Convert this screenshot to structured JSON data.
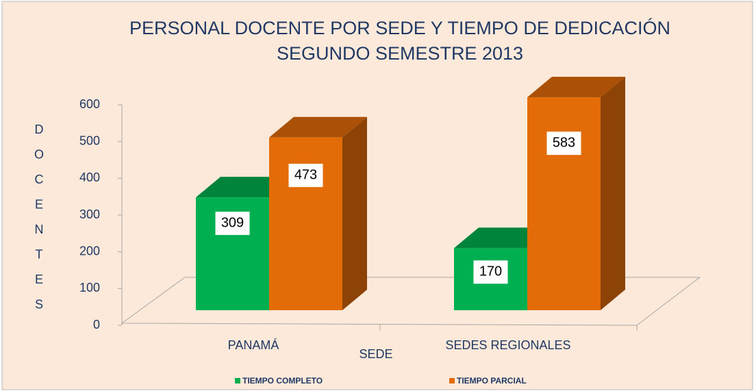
{
  "chart_data": {
    "type": "bar3d",
    "title": "PERSONAL DOCENTE POR SEDE Y TIEMPO DE DEDICACIÓN",
    "subtitle": "SEGUNDO SEMESTRE 2013",
    "y_label": "DOCENTES",
    "x_label": "SEDE",
    "categories": [
      "PANAMÁ",
      "SEDES REGIONALES"
    ],
    "series": [
      {
        "name": "TIEMPO COMPLETO",
        "color": "#00b050",
        "values": [
          309,
          170
        ]
      },
      {
        "name": "TIEMPO PARCIAL",
        "color": "#e36c09",
        "values": [
          473,
          583
        ]
      }
    ],
    "ylim": [
      0,
      600
    ],
    "yticks": [
      0,
      100,
      200,
      300,
      400,
      500,
      600
    ],
    "legend": "bottom"
  }
}
